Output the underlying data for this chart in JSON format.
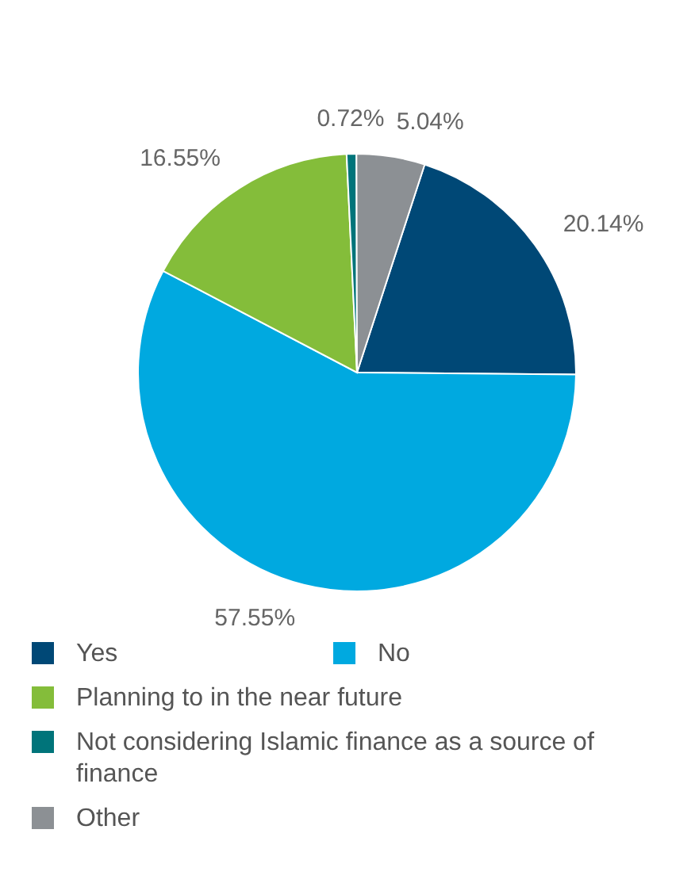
{
  "chart_data": {
    "type": "pie",
    "categories": [
      "Yes",
      "No",
      "Planning to in the near future",
      "Not considering Islamic finance as a source of finance",
      "Other"
    ],
    "values": [
      20.14,
      57.55,
      16.55,
      0.72,
      5.04
    ],
    "colors": [
      "#004876",
      "#00a9e0",
      "#84bd3a",
      "#00747a",
      "#8c9094"
    ],
    "value_labels": [
      "20.14%",
      "57.55%",
      "16.55%",
      "0.72%",
      "5.04%"
    ],
    "legend": "bottom"
  }
}
